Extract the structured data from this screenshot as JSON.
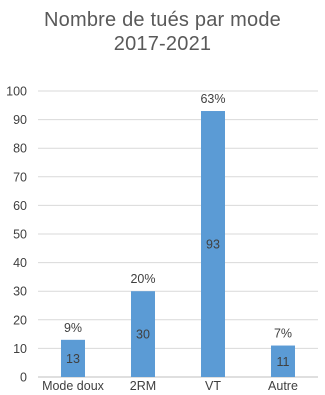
{
  "chart_data": {
    "type": "bar",
    "title_lines": [
      "Nombre de tués par mode",
      "2017-2021"
    ],
    "categories": [
      "Mode doux",
      "2RM",
      "VT",
      "Autre"
    ],
    "values": [
      13,
      30,
      93,
      11
    ],
    "value_labels": [
      "13",
      "30",
      "93",
      "11"
    ],
    "percent_labels": [
      "9%",
      "20%",
      "63%",
      "7%"
    ],
    "ylim": [
      0,
      100
    ],
    "yticks": [
      "0",
      "10",
      "20",
      "30",
      "40",
      "50",
      "60",
      "70",
      "80",
      "90",
      "100"
    ],
    "grid": true,
    "legend": "none"
  },
  "colors": {
    "bar": "#5B9BD5",
    "grid": "#D9D9D9",
    "axis": "#BFBFBF",
    "text": "#404040",
    "title": "#595959"
  }
}
